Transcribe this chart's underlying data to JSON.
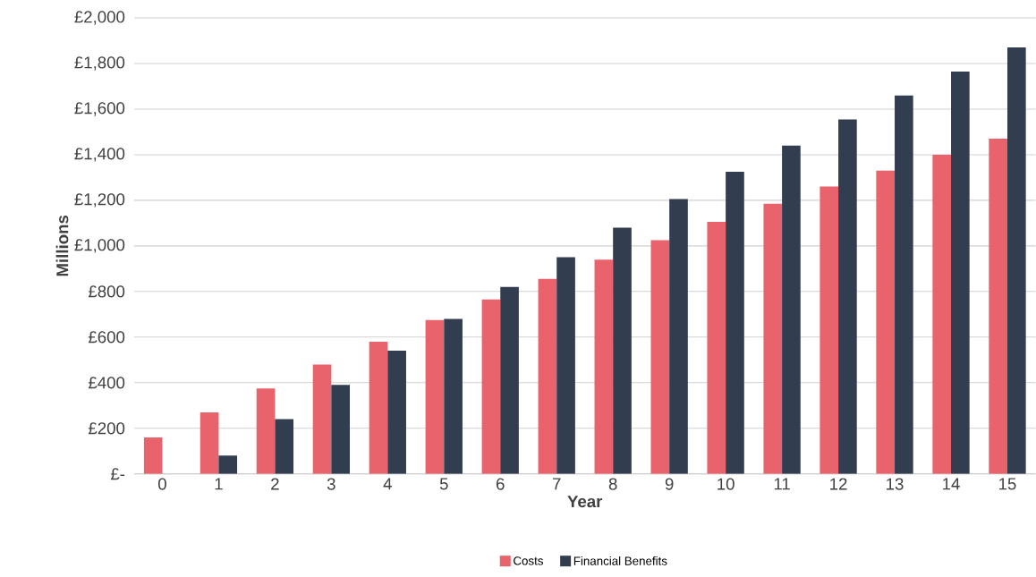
{
  "chart_data": {
    "type": "bar",
    "xlabel": "Year",
    "ylabel": "Millions",
    "categories": [
      "0",
      "1",
      "2",
      "3",
      "4",
      "5",
      "6",
      "7",
      "8",
      "9",
      "10",
      "11",
      "12",
      "13",
      "14",
      "15"
    ],
    "series": [
      {
        "name": "Costs",
        "color": "#e8636b",
        "values": [
          160,
          270,
          375,
          480,
          580,
          675,
          765,
          855,
          940,
          1025,
          1105,
          1185,
          1260,
          1330,
          1400,
          1470
        ]
      },
      {
        "name": "Financial Benefits",
        "color": "#333d50",
        "values": [
          null,
          80,
          240,
          390,
          540,
          680,
          820,
          950,
          1080,
          1205,
          1325,
          1440,
          1555,
          1660,
          1765,
          1870
        ]
      }
    ],
    "ylim": [
      0,
      2000
    ],
    "yticks": [
      {
        "value": 0,
        "label": "£-"
      },
      {
        "value": 200,
        "label": "£200"
      },
      {
        "value": 400,
        "label": "£400"
      },
      {
        "value": 600,
        "label": "£600"
      },
      {
        "value": 800,
        "label": "£800"
      },
      {
        "value": 1000,
        "label": "£1,000"
      },
      {
        "value": 1200,
        "label": "£1,200"
      },
      {
        "value": 1400,
        "label": "£1,400"
      },
      {
        "value": 1600,
        "label": "£1,600"
      },
      {
        "value": 1800,
        "label": "£1,800"
      },
      {
        "value": 2000,
        "label": "£2,000"
      }
    ],
    "grid": "y",
    "legend": "bottom"
  }
}
